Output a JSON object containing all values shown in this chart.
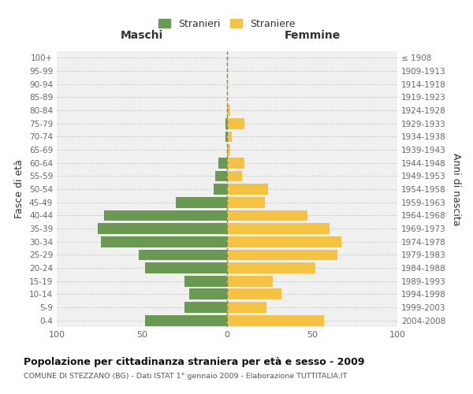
{
  "age_groups": [
    "0-4",
    "5-9",
    "10-14",
    "15-19",
    "20-24",
    "25-29",
    "30-34",
    "35-39",
    "40-44",
    "45-49",
    "50-54",
    "55-59",
    "60-64",
    "65-69",
    "70-74",
    "75-79",
    "80-84",
    "85-89",
    "90-94",
    "95-99",
    "100+"
  ],
  "birth_years": [
    "2004-2008",
    "1999-2003",
    "1994-1998",
    "1989-1993",
    "1984-1988",
    "1979-1983",
    "1974-1978",
    "1969-1973",
    "1964-1968",
    "1959-1963",
    "1954-1958",
    "1949-1953",
    "1944-1948",
    "1939-1943",
    "1934-1938",
    "1929-1933",
    "1924-1928",
    "1919-1923",
    "1914-1918",
    "1909-1913",
    "≤ 1908"
  ],
  "maschi": [
    48,
    25,
    22,
    25,
    48,
    52,
    74,
    76,
    72,
    30,
    8,
    7,
    5,
    0,
    1,
    1,
    0,
    0,
    0,
    0,
    0
  ],
  "femmine": [
    57,
    23,
    32,
    27,
    52,
    65,
    67,
    60,
    47,
    22,
    24,
    9,
    10,
    2,
    3,
    10,
    2,
    0,
    0,
    0,
    0
  ],
  "color_maschi": "#6a9a52",
  "color_femmine": "#f5c242",
  "title": "Popolazione per cittadinanza straniera per età e sesso - 2009",
  "subtitle": "COMUNE DI STEZZANO (BG) - Dati ISTAT 1° gennaio 2009 - Elaborazione TUTTITALIA.IT",
  "xlabel_left": "Maschi",
  "xlabel_right": "Femmine",
  "ylabel_left": "Fasce di età",
  "ylabel_right": "Anni di nascita",
  "legend_maschi": "Stranieri",
  "legend_femmine": "Straniere",
  "xlim": 100,
  "bg_color": "#ffffff",
  "plot_bg_color": "#f0f0f0",
  "grid_color": "#cccccc"
}
